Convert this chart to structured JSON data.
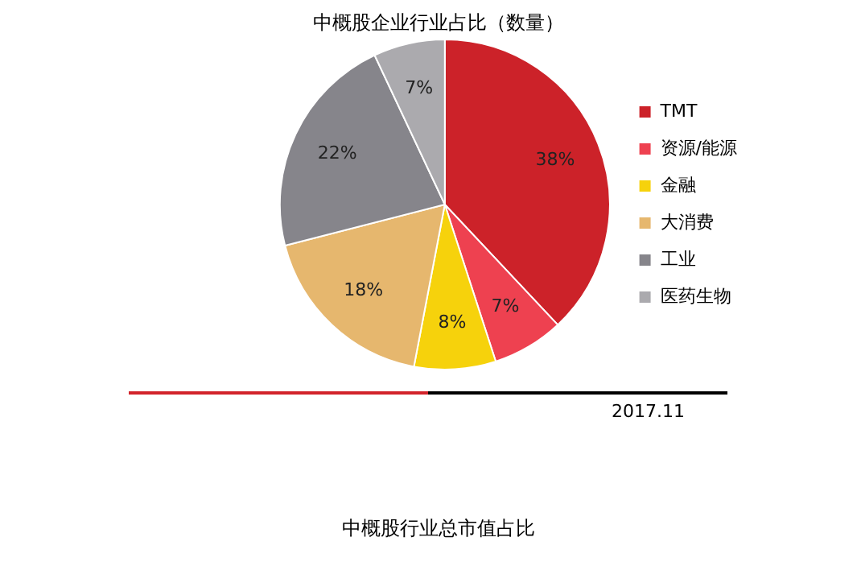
{
  "chart_data": {
    "type": "pie",
    "title": "中概股企业行业占比（数量）",
    "categories": [
      "TMT",
      "资源/能源",
      "金融",
      "大消费",
      "工业",
      "医药生物"
    ],
    "values": [
      38,
      7,
      8,
      18,
      22,
      7
    ],
    "colors": [
      "#cc2229",
      "#ee4150",
      "#f6d20c",
      "#e6b76e",
      "#86858b",
      "#abaaae"
    ],
    "value_labels": [
      "38%",
      "7%",
      "8%",
      "18%",
      "22%",
      "7%"
    ],
    "legend": "right",
    "annotations": [
      "2017.11",
      "中概股行业总市值占比"
    ]
  }
}
